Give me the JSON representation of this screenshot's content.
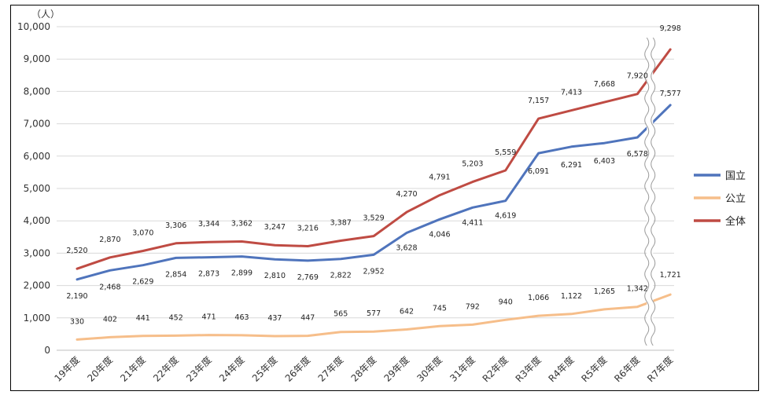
{
  "chart_data": {
    "type": "line",
    "unit_label": "（人）",
    "categories": [
      "19年度",
      "20年度",
      "21年度",
      "22年度",
      "23年度",
      "24年度",
      "25年度",
      "26年度",
      "27年度",
      "28年度",
      "29年度",
      "30年度",
      "31年度",
      "R2年度",
      "R3年度",
      "R4年度",
      "R5年度",
      "R6年度",
      "R7年度"
    ],
    "ylim": [
      0,
      10000
    ],
    "yticks": [
      "0",
      "1,000",
      "2,000",
      "3,000",
      "4,000",
      "5,000",
      "6,000",
      "7,000",
      "8,000",
      "9,000",
      "10,000"
    ],
    "grid": true,
    "legend_position": "right",
    "axis_break_between": [
      "R6年度",
      "R7年度"
    ],
    "series": [
      {
        "name": "国立",
        "color": "#4f74bc",
        "values": [
          2190,
          2468,
          2629,
          2854,
          2873,
          2899,
          2810,
          2769,
          2822,
          2952,
          3628,
          4046,
          4411,
          4619,
          6091,
          6291,
          6403,
          6578,
          7577
        ],
        "labels": [
          "2,190",
          "2,468",
          "2,629",
          "2,854",
          "2,873",
          "2,899",
          "2,810",
          "2,769",
          "2,822",
          "2,952",
          "3,628",
          "4,046",
          "4,411",
          "4,619",
          "6,091",
          "6,291",
          "6,403",
          "6,578",
          "7,577"
        ]
      },
      {
        "name": "公立",
        "color": "#f6be8a",
        "values": [
          330,
          402,
          441,
          452,
          471,
          463,
          437,
          447,
          565,
          577,
          642,
          745,
          792,
          940,
          1066,
          1122,
          1265,
          1342,
          1721
        ],
        "labels": [
          "330",
          "402",
          "441",
          "452",
          "471",
          "463",
          "437",
          "447",
          "565",
          "577",
          "642",
          "745",
          "792",
          "940",
          "1,066",
          "1,122",
          "1,265",
          "1,342",
          "1,721"
        ]
      },
      {
        "name": "全体",
        "color": "#bf4b43",
        "values": [
          2520,
          2870,
          3070,
          3306,
          3344,
          3362,
          3247,
          3216,
          3387,
          3529,
          4270,
          4791,
          5203,
          5559,
          7157,
          7413,
          7668,
          7920,
          9298
        ],
        "labels": [
          "2,520",
          "2,870",
          "3,070",
          "3,306",
          "3,344",
          "3,362",
          "3,247",
          "3,216",
          "3,387",
          "3,529",
          "4,270",
          "4,791",
          "5,203",
          "5,559",
          "7,157",
          "7,413",
          "7,668",
          "7,920",
          "9,298"
        ]
      }
    ]
  }
}
